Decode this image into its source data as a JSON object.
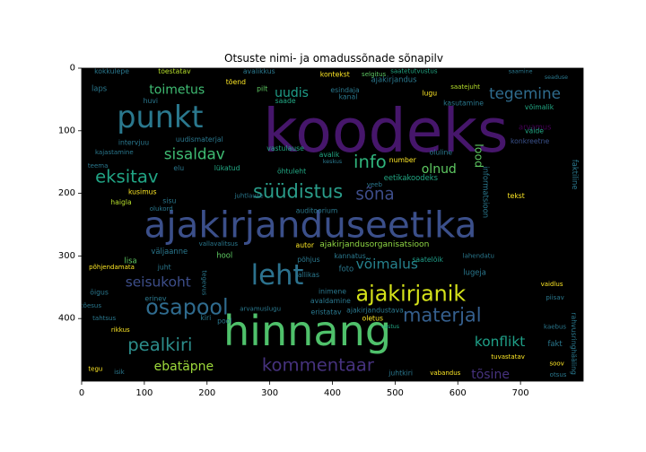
{
  "chart_data": {
    "type": "wordcloud",
    "title": "Otsuste nimi- ja omadussõnade sõnapilv",
    "xlim": [
      0,
      800
    ],
    "ylim": [
      500,
      0
    ],
    "x_ticks": [
      0,
      100,
      200,
      300,
      400,
      500,
      600,
      700
    ],
    "y_ticks": [
      0,
      100,
      200,
      300,
      400
    ],
    "background": "#000000",
    "words": [
      {
        "text": "koodeks",
        "x": 485,
        "y": 100,
        "size": 95,
        "color": "#46166b"
      },
      {
        "text": "ajakirjanduseetika",
        "x": 365,
        "y": 250,
        "size": 58,
        "color": "#3b4f8a"
      },
      {
        "text": "hinnang",
        "x": 360,
        "y": 420,
        "size": 66,
        "color": "#4fc16b"
      },
      {
        "text": "punkt",
        "x": 125,
        "y": 78,
        "size": 48,
        "color": "#2a788e"
      },
      {
        "text": "leht",
        "x": 312,
        "y": 332,
        "size": 44,
        "color": "#2c728e"
      },
      {
        "text": "ajakirjanik",
        "x": 525,
        "y": 360,
        "size": 34,
        "color": "#d5e21a"
      },
      {
        "text": "osapool",
        "x": 168,
        "y": 382,
        "size": 34,
        "color": "#2f6b8e"
      },
      {
        "text": "süüdistus",
        "x": 345,
        "y": 197,
        "size": 30,
        "color": "#2a9d8a"
      },
      {
        "text": "materjal",
        "x": 575,
        "y": 395,
        "size": 30,
        "color": "#355f8d"
      },
      {
        "text": "kommentaar",
        "x": 377,
        "y": 474,
        "size": 28,
        "color": "#46327e"
      },
      {
        "text": "pealkiri",
        "x": 125,
        "y": 442,
        "size": 28,
        "color": "#2c8c8a"
      },
      {
        "text": "eksitav",
        "x": 72,
        "y": 173,
        "size": 28,
        "color": "#21a585"
      },
      {
        "text": "info",
        "x": 460,
        "y": 150,
        "size": 28,
        "color": "#2fb47c"
      },
      {
        "text": "sõna",
        "x": 468,
        "y": 202,
        "size": 26,
        "color": "#3d4d8a"
      },
      {
        "text": "tegemine",
        "x": 707,
        "y": 40,
        "size": 24,
        "color": "#2f6c8e"
      },
      {
        "text": "sisaldav",
        "x": 180,
        "y": 137,
        "size": 24,
        "color": "#3fbc73"
      },
      {
        "text": "seisukoht",
        "x": 122,
        "y": 342,
        "size": 22,
        "color": "#3d4e8a"
      },
      {
        "text": "konflikt",
        "x": 667,
        "y": 437,
        "size": 22,
        "color": "#1fa088"
      },
      {
        "text": "võimalus",
        "x": 487,
        "y": 313,
        "size": 22,
        "color": "#26828e"
      },
      {
        "text": "toimetus",
        "x": 152,
        "y": 35,
        "size": 20,
        "color": "#3fbc73"
      },
      {
        "text": "ebatäpne",
        "x": 163,
        "y": 477,
        "size": 20,
        "color": "#9dd93b"
      },
      {
        "text": "tõsine",
        "x": 652,
        "y": 490,
        "size": 20,
        "color": "#46327e"
      },
      {
        "text": "uudis",
        "x": 335,
        "y": 40,
        "size": 20,
        "color": "#1f9e89"
      },
      {
        "text": "olnud",
        "x": 570,
        "y": 162,
        "size": 20,
        "color": "#5ec962"
      },
      {
        "text": "lood",
        "x": 634,
        "y": 140,
        "size": 18,
        "color": "#5ec962",
        "rotate": 90
      },
      {
        "text": "ajakirjandusorganisatsioon",
        "x": 467,
        "y": 282,
        "size": 13,
        "color": "#8fd744"
      },
      {
        "text": "arvamus",
        "x": 723,
        "y": 94,
        "size": 12,
        "color": "#440154"
      },
      {
        "text": "informatsioon",
        "x": 645,
        "y": 198,
        "size": 12,
        "color": "#2a788e",
        "rotate": 90
      },
      {
        "text": "eetikakoodeks",
        "x": 525,
        "y": 175,
        "size": 12,
        "color": "#22a884"
      },
      {
        "text": "saatelõik",
        "x": 552,
        "y": 306,
        "size": 11,
        "color": "#1f9e89"
      },
      {
        "text": "lugeja",
        "x": 627,
        "y": 326,
        "size": 12,
        "color": "#2a788e"
      },
      {
        "text": "ajakirjandus",
        "x": 498,
        "y": 18,
        "size": 12,
        "color": "#2a788e"
      },
      {
        "text": "ajakirjandustava",
        "x": 468,
        "y": 387,
        "size": 11,
        "color": "#2a788e"
      },
      {
        "text": "kokkulepe",
        "x": 48,
        "y": 5,
        "size": 11,
        "color": "#2a788e"
      },
      {
        "text": "tõestatav",
        "x": 148,
        "y": 5,
        "size": 11,
        "color": "#b5de2b"
      },
      {
        "text": "avalikkus",
        "x": 283,
        "y": 5,
        "size": 11,
        "color": "#2a788e"
      },
      {
        "text": "kontekst",
        "x": 404,
        "y": 10,
        "size": 11,
        "color": "#fde725"
      },
      {
        "text": "selgitus",
        "x": 466,
        "y": 10,
        "size": 10,
        "color": "#5ec962"
      },
      {
        "text": "saatetutvustus",
        "x": 530,
        "y": 5,
        "size": 10,
        "color": "#22a884"
      },
      {
        "text": "laps",
        "x": 28,
        "y": 32,
        "size": 12,
        "color": "#2a788e"
      },
      {
        "text": "tõend",
        "x": 246,
        "y": 22,
        "size": 11,
        "color": "#fde725"
      },
      {
        "text": "pilt",
        "x": 288,
        "y": 33,
        "size": 11,
        "color": "#5ec962"
      },
      {
        "text": "esindaja",
        "x": 420,
        "y": 35,
        "size": 11,
        "color": "#2a788e"
      },
      {
        "text": "lugu",
        "x": 555,
        "y": 40,
        "size": 11,
        "color": "#fde725"
      },
      {
        "text": "saatejuht",
        "x": 612,
        "y": 30,
        "size": 10,
        "color": "#b5de2b"
      },
      {
        "text": "saade",
        "x": 325,
        "y": 52,
        "size": 11,
        "color": "#22a884"
      },
      {
        "text": "kanal",
        "x": 425,
        "y": 46,
        "size": 11,
        "color": "#2a788e"
      },
      {
        "text": "kasutamine",
        "x": 609,
        "y": 56,
        "size": 11,
        "color": "#2a788e"
      },
      {
        "text": "võimalik",
        "x": 730,
        "y": 62,
        "size": 11,
        "color": "#22a884"
      },
      {
        "text": "huvi",
        "x": 110,
        "y": 52,
        "size": 11,
        "color": "#2a788e"
      },
      {
        "text": "intervjuu",
        "x": 83,
        "y": 119,
        "size": 11,
        "color": "#2a788e"
      },
      {
        "text": "uudismaterjal",
        "x": 188,
        "y": 114,
        "size": 11,
        "color": "#2a788e"
      },
      {
        "text": "vastulause",
        "x": 325,
        "y": 128,
        "size": 11,
        "color": "#22a884"
      },
      {
        "text": "avalik",
        "x": 395,
        "y": 138,
        "size": 11,
        "color": "#22a884"
      },
      {
        "text": "keskus",
        "x": 400,
        "y": 150,
        "size": 9,
        "color": "#2a788e"
      },
      {
        "text": "konkreetne",
        "x": 715,
        "y": 117,
        "size": 11,
        "color": "#3b528b"
      },
      {
        "text": "väide",
        "x": 722,
        "y": 100,
        "size": 11,
        "color": "#22a884"
      },
      {
        "text": "number",
        "x": 512,
        "y": 147,
        "size": 11,
        "color": "#fde725"
      },
      {
        "text": "oluline",
        "x": 573,
        "y": 135,
        "size": 11,
        "color": "#2a788e"
      },
      {
        "text": "kajastamine",
        "x": 52,
        "y": 135,
        "size": 10,
        "color": "#2a788e"
      },
      {
        "text": "teema",
        "x": 26,
        "y": 156,
        "size": 10,
        "color": "#2a788e"
      },
      {
        "text": "elu",
        "x": 155,
        "y": 160,
        "size": 11,
        "color": "#2a788e"
      },
      {
        "text": "lükatud",
        "x": 232,
        "y": 160,
        "size": 11,
        "color": "#22a884"
      },
      {
        "text": "õhtuleht",
        "x": 335,
        "y": 165,
        "size": 11,
        "color": "#22a884"
      },
      {
        "text": "allikas",
        "x": 362,
        "y": 330,
        "size": 11,
        "color": "#2a788e"
      },
      {
        "text": "kusimus",
        "x": 97,
        "y": 198,
        "size": 11,
        "color": "#fde725"
      },
      {
        "text": "sisu",
        "x": 140,
        "y": 212,
        "size": 11,
        "color": "#2a788e"
      },
      {
        "text": "haigla",
        "x": 63,
        "y": 214,
        "size": 11,
        "color": "#b5de2b"
      },
      {
        "text": "olukord",
        "x": 127,
        "y": 225,
        "size": 10,
        "color": "#2a788e"
      },
      {
        "text": "juhtlause",
        "x": 267,
        "y": 204,
        "size": 10,
        "color": "#2a788e"
      },
      {
        "text": "auditoorium",
        "x": 375,
        "y": 228,
        "size": 11,
        "color": "#2a788e"
      },
      {
        "text": "veeb",
        "x": 467,
        "y": 186,
        "size": 10,
        "color": "#2a788e"
      },
      {
        "text": "faktiline",
        "x": 787,
        "y": 170,
        "size": 12,
        "color": "#2a788e",
        "rotate": 90
      },
      {
        "text": "väljaanne",
        "x": 140,
        "y": 292,
        "size": 12,
        "color": "#2a788e"
      },
      {
        "text": "vallavalitsus",
        "x": 218,
        "y": 281,
        "size": 10,
        "color": "#2a788e"
      },
      {
        "text": "hool",
        "x": 228,
        "y": 299,
        "size": 12,
        "color": "#5ec962"
      },
      {
        "text": "autor",
        "x": 356,
        "y": 283,
        "size": 11,
        "color": "#fde725"
      },
      {
        "text": "põhjus",
        "x": 362,
        "y": 306,
        "size": 11,
        "color": "#2a788e"
      },
      {
        "text": "kannatus",
        "x": 428,
        "y": 300,
        "size": 11,
        "color": "#2a788e"
      },
      {
        "text": "foto",
        "x": 422,
        "y": 320,
        "size": 12,
        "color": "#2a788e"
      },
      {
        "text": "lisa",
        "x": 78,
        "y": 307,
        "size": 12,
        "color": "#5ec962"
      },
      {
        "text": "juht",
        "x": 132,
        "y": 318,
        "size": 11,
        "color": "#2a788e"
      },
      {
        "text": "põhjendamata",
        "x": 48,
        "y": 318,
        "size": 10,
        "color": "#fde725"
      },
      {
        "text": "õigus",
        "x": 28,
        "y": 358,
        "size": 11,
        "color": "#2a788e"
      },
      {
        "text": "erinev",
        "x": 118,
        "y": 368,
        "size": 11,
        "color": "#2a788e"
      },
      {
        "text": "tegevus",
        "x": 195,
        "y": 343,
        "size": 10,
        "color": "#2a788e",
        "rotate": 90
      },
      {
        "text": "inimene",
        "x": 400,
        "y": 357,
        "size": 11,
        "color": "#2a788e"
      },
      {
        "text": "avaldamine",
        "x": 397,
        "y": 372,
        "size": 11,
        "color": "#2a788e"
      },
      {
        "text": "eristatav",
        "x": 390,
        "y": 390,
        "size": 11,
        "color": "#2a788e"
      },
      {
        "text": "oletus",
        "x": 464,
        "y": 400,
        "size": 11,
        "color": "#fde725"
      },
      {
        "text": "vastus",
        "x": 492,
        "y": 413,
        "size": 9,
        "color": "#22a884"
      },
      {
        "text": "kiri",
        "x": 198,
        "y": 399,
        "size": 11,
        "color": "#2a788e"
      },
      {
        "text": "pool",
        "x": 228,
        "y": 404,
        "size": 11,
        "color": "#2a788e"
      },
      {
        "text": "arvamuslugu",
        "x": 285,
        "y": 385,
        "size": 10,
        "color": "#2a788e"
      },
      {
        "text": "tõesus",
        "x": 15,
        "y": 380,
        "size": 10,
        "color": "#2a788e"
      },
      {
        "text": "tahtsus",
        "x": 36,
        "y": 400,
        "size": 10,
        "color": "#2a788e"
      },
      {
        "text": "rikkus",
        "x": 62,
        "y": 418,
        "size": 10,
        "color": "#fde725"
      },
      {
        "text": "fakt",
        "x": 755,
        "y": 440,
        "size": 12,
        "color": "#2a788e"
      },
      {
        "text": "tuvastatav",
        "x": 680,
        "y": 461,
        "size": 10,
        "color": "#fde725"
      },
      {
        "text": "rahvusringhääling",
        "x": 785,
        "y": 440,
        "size": 11,
        "color": "#2a788e",
        "rotate": 90
      },
      {
        "text": "tegu",
        "x": 22,
        "y": 481,
        "size": 10,
        "color": "#fde725"
      },
      {
        "text": "isik",
        "x": 60,
        "y": 486,
        "size": 10,
        "color": "#2a788e"
      },
      {
        "text": "juhtkiri",
        "x": 509,
        "y": 487,
        "size": 11,
        "color": "#2a788e"
      },
      {
        "text": "vabandus",
        "x": 580,
        "y": 487,
        "size": 10,
        "color": "#fde725"
      },
      {
        "text": "otsus",
        "x": 760,
        "y": 490,
        "size": 10,
        "color": "#2a788e"
      },
      {
        "text": "soov",
        "x": 758,
        "y": 472,
        "size": 10,
        "color": "#fde725"
      },
      {
        "text": "kaebus",
        "x": 755,
        "y": 413,
        "size": 10,
        "color": "#2a788e"
      },
      {
        "text": "piisav",
        "x": 755,
        "y": 367,
        "size": 10,
        "color": "#2a788e"
      },
      {
        "text": "vaidlus",
        "x": 750,
        "y": 345,
        "size": 10,
        "color": "#fde725"
      },
      {
        "text": "lahendatu",
        "x": 633,
        "y": 300,
        "size": 10,
        "color": "#2a788e"
      },
      {
        "text": "tekst",
        "x": 693,
        "y": 204,
        "size": 11,
        "color": "#fde725"
      },
      {
        "text": "seaduse",
        "x": 757,
        "y": 15,
        "size": 9,
        "color": "#2a788e"
      },
      {
        "text": "saamine",
        "x": 700,
        "y": 6,
        "size": 9,
        "color": "#2a788e"
      }
    ]
  }
}
